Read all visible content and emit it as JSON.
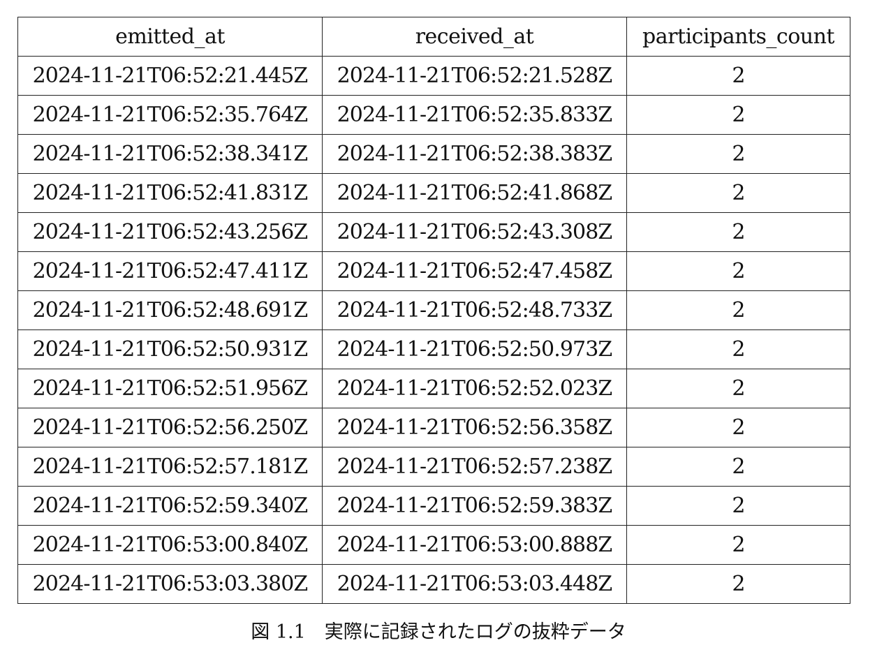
{
  "table": {
    "headers": [
      "emitted_at",
      "received_at",
      "participants_count"
    ],
    "rows": [
      [
        "2024-11-21T06:52:21.445Z",
        "2024-11-21T06:52:21.528Z",
        "2"
      ],
      [
        "2024-11-21T06:52:35.764Z",
        "2024-11-21T06:52:35.833Z",
        "2"
      ],
      [
        "2024-11-21T06:52:38.341Z",
        "2024-11-21T06:52:38.383Z",
        "2"
      ],
      [
        "2024-11-21T06:52:41.831Z",
        "2024-11-21T06:52:41.868Z",
        "2"
      ],
      [
        "2024-11-21T06:52:43.256Z",
        "2024-11-21T06:52:43.308Z",
        "2"
      ],
      [
        "2024-11-21T06:52:47.411Z",
        "2024-11-21T06:52:47.458Z",
        "2"
      ],
      [
        "2024-11-21T06:52:48.691Z",
        "2024-11-21T06:52:48.733Z",
        "2"
      ],
      [
        "2024-11-21T06:52:50.931Z",
        "2024-11-21T06:52:50.973Z",
        "2"
      ],
      [
        "2024-11-21T06:52:51.956Z",
        "2024-11-21T06:52:52.023Z",
        "2"
      ],
      [
        "2024-11-21T06:52:56.250Z",
        "2024-11-21T06:52:56.358Z",
        "2"
      ],
      [
        "2024-11-21T06:52:57.181Z",
        "2024-11-21T06:52:57.238Z",
        "2"
      ],
      [
        "2024-11-21T06:52:59.340Z",
        "2024-11-21T06:52:59.383Z",
        "2"
      ],
      [
        "2024-11-21T06:53:00.840Z",
        "2024-11-21T06:53:00.888Z",
        "2"
      ],
      [
        "2024-11-21T06:53:03.380Z",
        "2024-11-21T06:53:03.448Z",
        "2"
      ]
    ]
  },
  "caption": {
    "label": "図 1.1",
    "text": "実際に記録されたログの抜粋データ"
  }
}
